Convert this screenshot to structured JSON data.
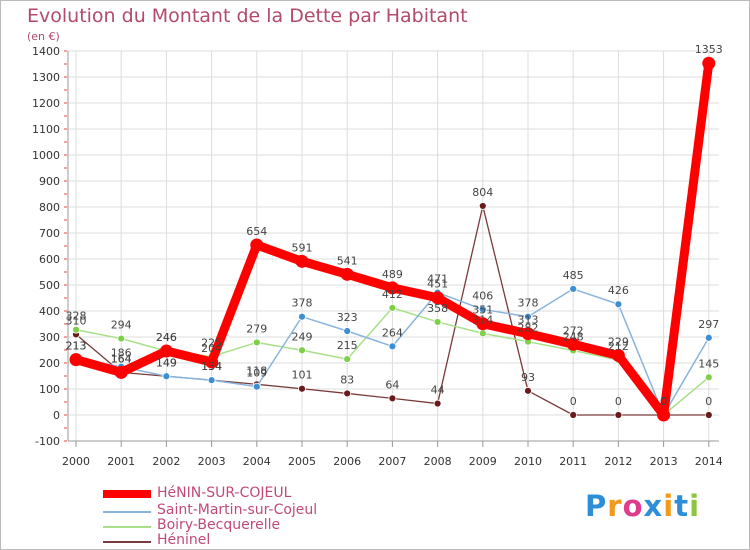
{
  "chart_data": {
    "type": "line",
    "title": "Evolution du Montant de la Dette par Habitant",
    "unit_label": "(en €)",
    "x": [
      "2000",
      "2001",
      "2002",
      "2003",
      "2004",
      "2005",
      "2006",
      "2007",
      "2008",
      "2009",
      "2010",
      "2011",
      "2012",
      "2013",
      "2014"
    ],
    "ylim": [
      -100,
      1400
    ],
    "yticks": [
      -100,
      0,
      100,
      200,
      300,
      400,
      500,
      600,
      700,
      800,
      900,
      1000,
      1100,
      1200,
      1300,
      1400
    ],
    "grid": true,
    "legend_position": "bottom-left",
    "series": [
      {
        "name": "HéNIN-SUR-COJEUL",
        "color": "#ff0000",
        "dot": "#ff0000",
        "values": [
          213,
          164,
          246,
          204,
          654,
          591,
          541,
          489,
          451,
          351,
          313,
          272,
          229,
          0,
          1353
        ],
        "labels": [
          "213",
          "164",
          "246",
          "204",
          "654",
          "591",
          "541",
          "489",
          "451",
          "351",
          "313",
          "272",
          "229",
          "0",
          "1353"
        ]
      },
      {
        "name": "Saint-Martin-sur-Cojeul",
        "color": "#88b4dd",
        "dot": "#3d8fd4",
        "values": [
          213,
          186,
          149,
          134,
          109,
          378,
          323,
          264,
          471,
          406,
          378,
          485,
          426,
          0,
          297
        ],
        "labels": [
          "213",
          "186",
          "149",
          "134",
          "109",
          "378",
          "323",
          "264",
          "471",
          "406",
          "378",
          "485",
          "426",
          "0",
          "297"
        ]
      },
      {
        "name": "Boiry-Becquerelle",
        "color": "#a8e088",
        "dot": "#7ed048",
        "values": [
          328,
          294,
          246,
          225,
          279,
          249,
          215,
          412,
          358,
          314,
          282,
          248,
          212,
          0,
          145
        ],
        "labels": [
          "328",
          "294",
          "246",
          "225",
          "279",
          "249",
          "215",
          "412",
          "358",
          "314",
          "282",
          "248",
          "212",
          "0",
          "145"
        ]
      },
      {
        "name": "Héninel",
        "color": "#7a3a3a",
        "dot": "#6a1a1a",
        "values": [
          310,
          164,
          149,
          134,
          118,
          101,
          83,
          64,
          44,
          804,
          93,
          0,
          0,
          0,
          0
        ],
        "labels": [
          "310",
          "164",
          "149",
          "134",
          "118",
          "101",
          "83",
          "64",
          "44",
          "804",
          "93",
          "0",
          "0",
          "0",
          "0"
        ]
      }
    ]
  },
  "logo": {
    "text": "Proxiti",
    "letters": [
      {
        "ch": "P",
        "color": "#2e8fd6"
      },
      {
        "ch": "r",
        "color": "#f29a1a"
      },
      {
        "ch": "o",
        "color": "#e03c8c"
      },
      {
        "ch": "x",
        "color": "#2e8fd6"
      },
      {
        "ch": "i",
        "color": "#f29a1a"
      },
      {
        "ch": "t",
        "color": "#2e8fd6"
      },
      {
        "ch": "i",
        "color": "#8cc63f"
      }
    ]
  }
}
